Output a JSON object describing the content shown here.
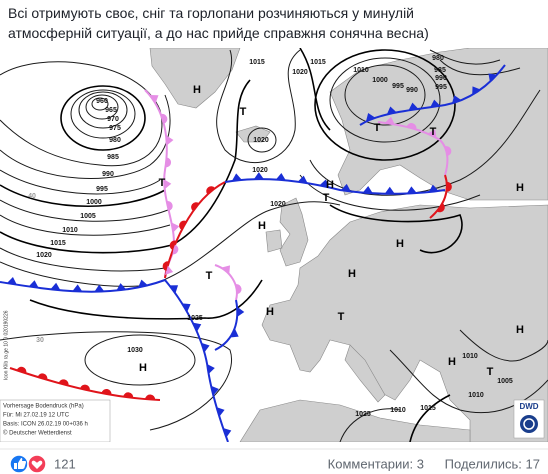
{
  "post": {
    "lines": [
      "Всі отримують своє, сніг та горлопани розчиняються у минулій",
      "атмосферній ситуації, а до нас прийде справжня сонячна весна)"
    ]
  },
  "map": {
    "labels": [
      "960",
      "965",
      "970",
      "975",
      "980",
      "985",
      "990",
      "995",
      "1000",
      "1005",
      "1010",
      "1015",
      "1020",
      "1025",
      "1030",
      "1020",
      "1020",
      "1015",
      "1020",
      "1015",
      "1010",
      "1000",
      "995",
      "990",
      "980",
      "985",
      "990",
      "995",
      "1010",
      "1005",
      "1010",
      "1015",
      "1020",
      "1025",
      "1010"
    ],
    "highs": [
      "H",
      "H",
      "H",
      "H",
      "H",
      "H",
      "H",
      "H",
      "H",
      "H"
    ],
    "lows": [
      "T",
      "T",
      "T",
      "T",
      "T",
      "T",
      "T",
      "T"
    ],
    "grid_labels": [
      "40",
      "30"
    ],
    "side_text": "Icon Klib ra.ge 10 0 020190226",
    "info": [
      "Vorhersage Bodendruck (hPa)",
      "Für: Mi 27.02.19 12 UTC",
      "Basis: ICON 26.02.19 00+036 h",
      "© Deutscher Wetterdienst"
    ],
    "logo": "DWD"
  },
  "footer": {
    "reactions": 121,
    "comments": "Комментарии: 3",
    "shares": "Поделились: 17"
  }
}
